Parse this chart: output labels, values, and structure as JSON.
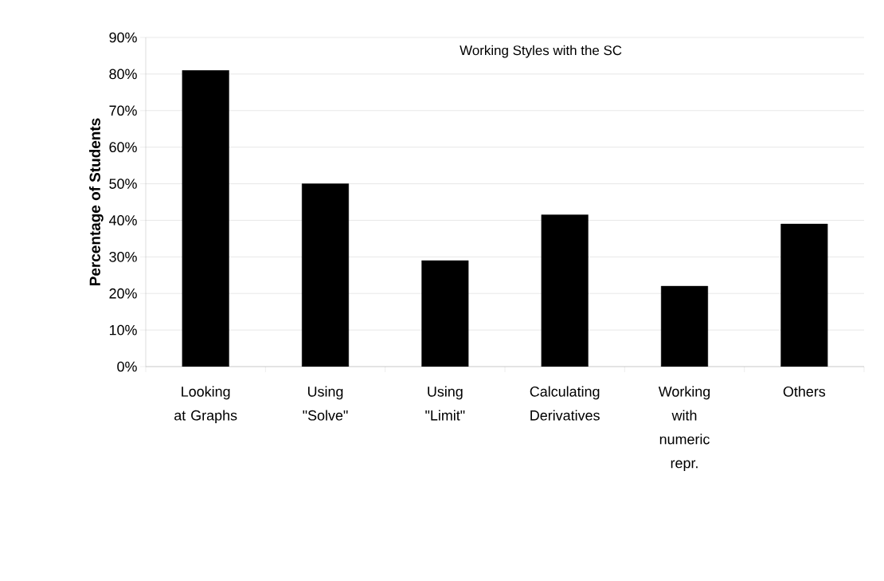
{
  "chart_data": {
    "type": "bar",
    "title": "Working Styles with the SC",
    "ylabel": "Percentage of Students",
    "categories": [
      "Looking at Graphs",
      "Using \"Solve\"",
      "Using \"Limit\"",
      "Calculating Derivatives",
      "Working with numeric repr.",
      "Others"
    ],
    "values": [
      81,
      50,
      29,
      41.5,
      22,
      39
    ],
    "color": "#000000",
    "ylim": [
      0,
      90
    ],
    "yticks": [
      {
        "value": 0,
        "label": "0%"
      },
      {
        "value": 10,
        "label": "10%"
      },
      {
        "value": 20,
        "label": "20%"
      },
      {
        "value": 30,
        "label": "30%"
      },
      {
        "value": 40,
        "label": "40%"
      },
      {
        "value": 50,
        "label": "50%"
      },
      {
        "value": 60,
        "label": "60%"
      },
      {
        "value": 70,
        "label": "70%"
      },
      {
        "value": 80,
        "label": "80%"
      },
      {
        "value": 90,
        "label": "90%"
      }
    ],
    "grid": "y"
  }
}
